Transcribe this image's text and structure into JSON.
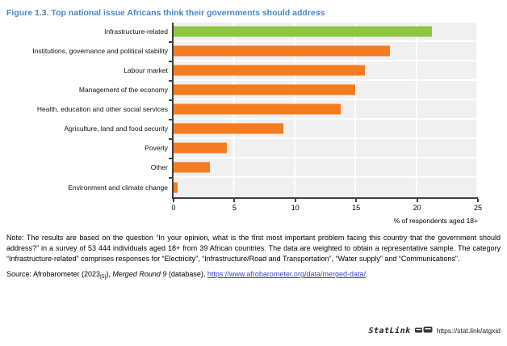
{
  "figure": {
    "title": "Figure 1.3. Top national issue Africans think their governments should address"
  },
  "chart_data": {
    "type": "bar",
    "orientation": "horizontal",
    "title": "Figure 1.3. Top national issue Africans think their governments should address",
    "categories": [
      "Infrastructure-related",
      "Institutions, governance and political stability",
      "Labour market",
      "Management of the economy",
      "Health, education and other social services",
      "Agriculture, land and food security",
      "Poverty",
      "Other",
      "Environment and climate change"
    ],
    "values": [
      21.2,
      17.8,
      15.7,
      14.9,
      13.7,
      9.0,
      4.4,
      3.0,
      0.3
    ],
    "xlabel": "% of respondents aged 18+",
    "ylabel": "",
    "xlim": [
      0,
      25
    ],
    "xticks": [
      0,
      5,
      10,
      15,
      20,
      25
    ],
    "grid": "vertical-white-on-gray",
    "legend": "none",
    "bar_color": "#f47b20",
    "highlight_color": "#8dc63f",
    "highlight_index": 0
  },
  "note": {
    "text": "Note: The results are based on the question “In your opinion, what is the first most important problem facing this country that the government should address?” in a survey of 53 444 individuals aged 18+ from 39 African countries. The data are weighted to obtain a representative sample. The category “Infrastructure-related” comprises responses for “Electricity”, “Infrastructure/Road and Transportation”, “Water supply” and “Communications”."
  },
  "source": {
    "prefix": "Source: Afrobarometer (2023",
    "ref": "[5]",
    "sep": "), ",
    "work": "Merged Round 9",
    "mid": " (database), ",
    "url": "https://www.afrobarometer.org/data/merged-data/",
    "suffix": "."
  },
  "statlink": {
    "brand": "StatLink",
    "url": "https://stat.link/atgxid"
  }
}
